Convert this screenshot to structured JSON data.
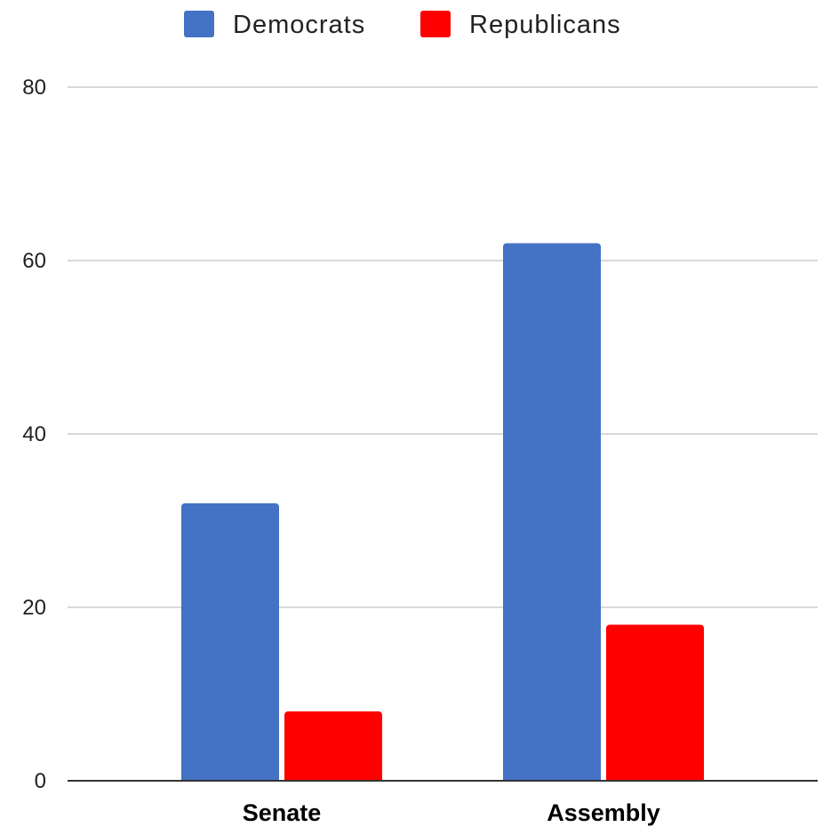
{
  "chart_data": {
    "type": "bar",
    "title": "",
    "xlabel": "",
    "ylabel": "",
    "categories": [
      "Senate",
      "Assembly"
    ],
    "series": [
      {
        "name": "Democrats",
        "color": "#4472c4",
        "values": [
          32,
          62
        ]
      },
      {
        "name": "Republicans",
        "color": "#ff0000",
        "values": [
          8,
          18
        ]
      }
    ],
    "ylim": [
      0,
      80
    ],
    "yticks": [
      "0",
      "20",
      "40",
      "60",
      "80"
    ],
    "grid": true,
    "legend_position": "top"
  }
}
